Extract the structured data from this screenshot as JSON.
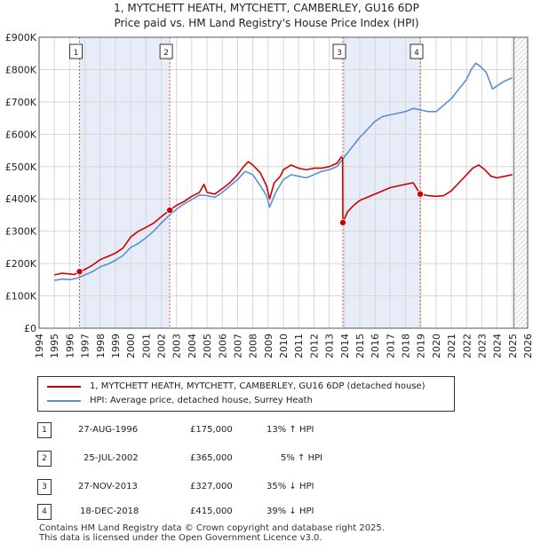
{
  "title_line1": "1, MYTCHETT HEATH, MYTCHETT, CAMBERLEY, GU16 6DP",
  "title_line2": "Price paid vs. HM Land Registry's House Price Index (HPI)",
  "colors": {
    "property": "#cc0000",
    "hpi": "#5b8fd4",
    "shade": "#e6ecf8",
    "vline": "#e05050",
    "grid": "#d6d6d6"
  },
  "chart_data": {
    "type": "line",
    "title": "Price paid vs. HM Land Registry's House Price Index (HPI)",
    "xlabel": "",
    "ylabel": "",
    "xlim": [
      1994,
      2026
    ],
    "ylim": [
      0,
      900000
    ],
    "x_ticks": [
      1994,
      1995,
      1996,
      1997,
      1998,
      1999,
      2000,
      2001,
      2002,
      2003,
      2004,
      2005,
      2006,
      2007,
      2008,
      2009,
      2010,
      2011,
      2012,
      2013,
      2014,
      2015,
      2016,
      2017,
      2018,
      2019,
      2020,
      2021,
      2022,
      2023,
      2024,
      2025,
      2026
    ],
    "y_ticks": [
      {
        "value": 0,
        "label": "£0"
      },
      {
        "value": 100000,
        "label": "£100K"
      },
      {
        "value": 200000,
        "label": "£200K"
      },
      {
        "value": 300000,
        "label": "£300K"
      },
      {
        "value": 400000,
        "label": "£400K"
      },
      {
        "value": 500000,
        "label": "£500K"
      },
      {
        "value": 600000,
        "label": "£600K"
      },
      {
        "value": 700000,
        "label": "£700K"
      },
      {
        "value": 800000,
        "label": "£800K"
      },
      {
        "value": 900000,
        "label": "£900K"
      }
    ],
    "grid": true,
    "data_end_year": 2025.1,
    "shaded_ranges": [
      [
        1996.65,
        2002.56
      ],
      [
        2013.9,
        2018.96
      ]
    ],
    "series": [
      {
        "name": "1, MYTCHETT HEATH, MYTCHETT, CAMBERLEY, GU16 6DP (detached house)",
        "color": "#cc0000",
        "points": [
          [
            1995.0,
            165000
          ],
          [
            1995.5,
            170000
          ],
          [
            1996.0,
            168000
          ],
          [
            1996.3,
            166000
          ],
          [
            1996.65,
            175000
          ],
          [
            1997.0,
            182000
          ],
          [
            1997.5,
            195000
          ],
          [
            1998.0,
            212000
          ],
          [
            1998.5,
            222000
          ],
          [
            1999.0,
            232000
          ],
          [
            1999.5,
            248000
          ],
          [
            2000.0,
            282000
          ],
          [
            2000.5,
            300000
          ],
          [
            2001.0,
            312000
          ],
          [
            2001.5,
            325000
          ],
          [
            2002.0,
            345000
          ],
          [
            2002.56,
            365000
          ],
          [
            2003.0,
            380000
          ],
          [
            2003.5,
            392000
          ],
          [
            2004.0,
            408000
          ],
          [
            2004.5,
            420000
          ],
          [
            2004.8,
            445000
          ],
          [
            2005.0,
            420000
          ],
          [
            2005.5,
            415000
          ],
          [
            2006.0,
            432000
          ],
          [
            2006.5,
            450000
          ],
          [
            2007.0,
            475000
          ],
          [
            2007.4,
            500000
          ],
          [
            2007.7,
            515000
          ],
          [
            2008.0,
            505000
          ],
          [
            2008.5,
            480000
          ],
          [
            2008.9,
            440000
          ],
          [
            2009.1,
            400000
          ],
          [
            2009.4,
            450000
          ],
          [
            2009.8,
            470000
          ],
          [
            2010.0,
            490000
          ],
          [
            2010.5,
            505000
          ],
          [
            2011.0,
            495000
          ],
          [
            2011.5,
            490000
          ],
          [
            2012.0,
            495000
          ],
          [
            2012.5,
            495000
          ],
          [
            2013.0,
            500000
          ],
          [
            2013.5,
            510000
          ],
          [
            2013.8,
            530000
          ],
          [
            2013.88,
            525000
          ],
          [
            2013.9,
            327000
          ],
          [
            2014.2,
            360000
          ],
          [
            2014.6,
            380000
          ],
          [
            2015.0,
            395000
          ],
          [
            2015.5,
            405000
          ],
          [
            2016.0,
            415000
          ],
          [
            2016.5,
            425000
          ],
          [
            2017.0,
            435000
          ],
          [
            2017.5,
            440000
          ],
          [
            2018.0,
            445000
          ],
          [
            2018.5,
            450000
          ],
          [
            2018.96,
            415000
          ],
          [
            2019.5,
            410000
          ],
          [
            2020.0,
            408000
          ],
          [
            2020.5,
            410000
          ],
          [
            2021.0,
            425000
          ],
          [
            2021.5,
            450000
          ],
          [
            2022.0,
            475000
          ],
          [
            2022.4,
            495000
          ],
          [
            2022.8,
            505000
          ],
          [
            2023.2,
            490000
          ],
          [
            2023.6,
            470000
          ],
          [
            2024.0,
            465000
          ],
          [
            2024.5,
            470000
          ],
          [
            2025.0,
            475000
          ]
        ]
      },
      {
        "name": "HPI: Average price, detached house, Surrey Heath",
        "color": "#5b8fd4",
        "points": [
          [
            1995.0,
            148000
          ],
          [
            1995.5,
            152000
          ],
          [
            1996.0,
            150000
          ],
          [
            1996.5,
            155000
          ],
          [
            1997.0,
            165000
          ],
          [
            1997.5,
            175000
          ],
          [
            1998.0,
            190000
          ],
          [
            1998.5,
            198000
          ],
          [
            1999.0,
            210000
          ],
          [
            1999.5,
            225000
          ],
          [
            2000.0,
            250000
          ],
          [
            2000.5,
            262000
          ],
          [
            2001.0,
            280000
          ],
          [
            2001.5,
            300000
          ],
          [
            2002.0,
            325000
          ],
          [
            2002.5,
            348000
          ],
          [
            2003.0,
            368000
          ],
          [
            2003.5,
            385000
          ],
          [
            2004.0,
            398000
          ],
          [
            2004.5,
            412000
          ],
          [
            2005.0,
            410000
          ],
          [
            2005.5,
            405000
          ],
          [
            2006.0,
            420000
          ],
          [
            2006.5,
            440000
          ],
          [
            2007.0,
            460000
          ],
          [
            2007.5,
            485000
          ],
          [
            2008.0,
            475000
          ],
          [
            2008.5,
            440000
          ],
          [
            2008.9,
            410000
          ],
          [
            2009.1,
            375000
          ],
          [
            2009.5,
            420000
          ],
          [
            2010.0,
            460000
          ],
          [
            2010.5,
            475000
          ],
          [
            2011.0,
            470000
          ],
          [
            2011.5,
            465000
          ],
          [
            2012.0,
            475000
          ],
          [
            2012.5,
            485000
          ],
          [
            2013.0,
            490000
          ],
          [
            2013.5,
            500000
          ],
          [
            2014.0,
            530000
          ],
          [
            2014.5,
            560000
          ],
          [
            2015.0,
            590000
          ],
          [
            2015.5,
            615000
          ],
          [
            2016.0,
            640000
          ],
          [
            2016.5,
            655000
          ],
          [
            2017.0,
            660000
          ],
          [
            2017.5,
            665000
          ],
          [
            2018.0,
            670000
          ],
          [
            2018.5,
            680000
          ],
          [
            2019.0,
            675000
          ],
          [
            2019.5,
            670000
          ],
          [
            2020.0,
            670000
          ],
          [
            2020.5,
            690000
          ],
          [
            2021.0,
            710000
          ],
          [
            2021.5,
            740000
          ],
          [
            2022.0,
            770000
          ],
          [
            2022.3,
            800000
          ],
          [
            2022.6,
            820000
          ],
          [
            2022.9,
            810000
          ],
          [
            2023.3,
            790000
          ],
          [
            2023.7,
            740000
          ],
          [
            2024.0,
            750000
          ],
          [
            2024.5,
            765000
          ],
          [
            2025.0,
            775000
          ]
        ]
      }
    ],
    "transactions": [
      {
        "id": "1",
        "x": 1996.65,
        "price": 175000,
        "date": "27-AUG-1996",
        "price_label": "£175,000",
        "hpi": "13% ↑ HPI"
      },
      {
        "id": "2",
        "x": 2002.56,
        "price": 365000,
        "date": "25-JUL-2002",
        "price_label": "£365,000",
        "hpi": "5% ↑ HPI"
      },
      {
        "id": "3",
        "x": 2013.9,
        "price": 327000,
        "date": "27-NOV-2013",
        "price_label": "£327,000",
        "hpi": "35% ↓ HPI"
      },
      {
        "id": "4",
        "x": 2018.96,
        "price": 415000,
        "date": "18-DEC-2018",
        "price_label": "£415,000",
        "hpi": "39% ↓ HPI"
      }
    ]
  },
  "legend": [
    {
      "label": "1, MYTCHETT HEATH, MYTCHETT, CAMBERLEY, GU16 6DP (detached house)",
      "color": "#cc0000"
    },
    {
      "label": "HPI: Average price, detached house, Surrey Heath",
      "color": "#5b8fd4"
    }
  ],
  "footer_line1": "Contains HM Land Registry data © Crown copyright and database right 2025.",
  "footer_line2": "This data is licensed under the Open Government Licence v3.0."
}
